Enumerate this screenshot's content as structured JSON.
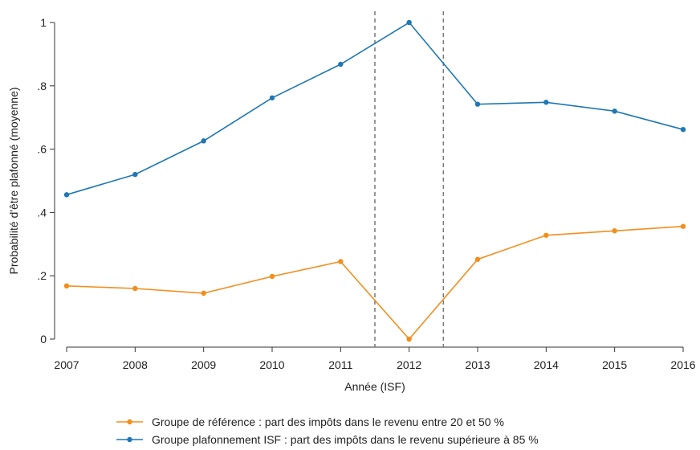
{
  "chart_data": {
    "type": "line",
    "xlabel": "Année (ISF)",
    "ylabel": "Probabilité d'être plafonné (moyenne)",
    "x": [
      2007,
      2008,
      2009,
      2010,
      2011,
      2012,
      2013,
      2014,
      2015,
      2016
    ],
    "x_tick_labels": [
      "2007",
      "2008",
      "2009",
      "2010",
      "2011",
      "2012",
      "2013",
      "2014",
      "2015",
      "2016"
    ],
    "xlim": [
      2007,
      2016
    ],
    "ylim": [
      0,
      1
    ],
    "y_ticks": [
      0,
      0.2,
      0.4,
      0.6,
      0.8,
      1
    ],
    "y_tick_labels": [
      "0",
      ".2",
      ".4",
      ".6",
      ".8",
      "1"
    ],
    "grid": false,
    "vertical_reference_lines": [
      2011.5,
      2012.5
    ],
    "legend_position": "bottom",
    "series": [
      {
        "name": "Groupe de référence : part des impôts dans le revenu entre 20 et 50 %",
        "color": "#f28e1c",
        "values": [
          0.168,
          0.16,
          0.145,
          0.198,
          0.245,
          0.0,
          0.252,
          0.328,
          0.342,
          0.356
        ]
      },
      {
        "name": "Groupe plafonnement ISF : part des impôts dans le revenu supérieure à 85 %",
        "color": "#1f77b4",
        "values": [
          0.456,
          0.52,
          0.626,
          0.762,
          0.868,
          1.0,
          0.742,
          0.748,
          0.72,
          0.662
        ]
      }
    ]
  }
}
